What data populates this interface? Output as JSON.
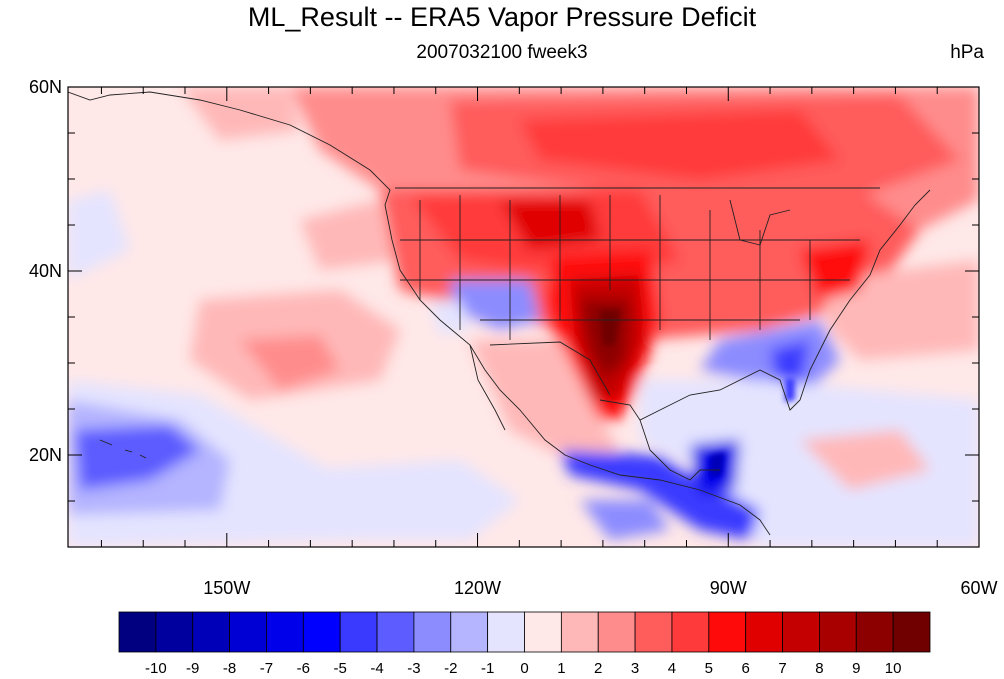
{
  "title": "ML_Result -- ERA5 Vapor Pressure Deficit",
  "subtitle": "2007032100 fweek3",
  "units": "hPa",
  "map": {
    "lon_range": [
      -169,
      -60
    ],
    "lat_range": [
      10,
      60
    ],
    "x_ticks": [
      {
        "lon": -150,
        "label": "150W"
      },
      {
        "lon": -120,
        "label": "120W"
      },
      {
        "lon": -90,
        "label": "90W"
      },
      {
        "lon": -60,
        "label": "60W"
      }
    ],
    "y_ticks": [
      {
        "lat": 60,
        "label": "60N"
      },
      {
        "lat": 40,
        "label": "40N"
      },
      {
        "lat": 20,
        "label": "20N"
      }
    ]
  },
  "colorbar": {
    "labels": [
      "-10",
      "-9",
      "-8",
      "-7",
      "-6",
      "-5",
      "-4",
      "-3",
      "-2",
      "-1",
      "0",
      "1",
      "2",
      "3",
      "4",
      "5",
      "6",
      "7",
      "8",
      "9",
      "10"
    ],
    "colors": [
      "#000080",
      "#00009e",
      "#0000b8",
      "#0000d4",
      "#0000eb",
      "#0000ff",
      "#3a3aff",
      "#5c5cff",
      "#8c8cff",
      "#b4b4ff",
      "#e4e4ff",
      "#ffe8e8",
      "#ffb8b8",
      "#ff8c8c",
      "#ff5c5c",
      "#ff3a3a",
      "#ff0a0a",
      "#e00000",
      "#c40000",
      "#a80000",
      "#8c0000",
      "#700000"
    ]
  }
}
